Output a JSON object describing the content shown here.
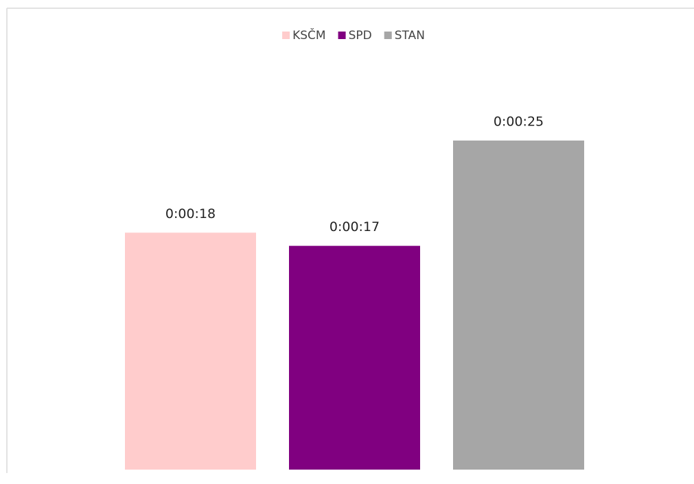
{
  "chart_data": {
    "type": "bar",
    "categories": [
      null
    ],
    "series": [
      {
        "name": "KSČM",
        "color": "#ffcccc",
        "values": [
          18
        ],
        "value_labels": [
          "0:00:18"
        ]
      },
      {
        "name": "SPD",
        "color": "#800080",
        "values": [
          17
        ],
        "value_labels": [
          "0:00:17"
        ]
      },
      {
        "name": "STAN",
        "color": "#a6a6a6",
        "values": [
          25
        ],
        "value_labels": [
          "0:00:25"
        ]
      }
    ],
    "ylim": [
      0,
      30
    ],
    "legend": "top"
  }
}
